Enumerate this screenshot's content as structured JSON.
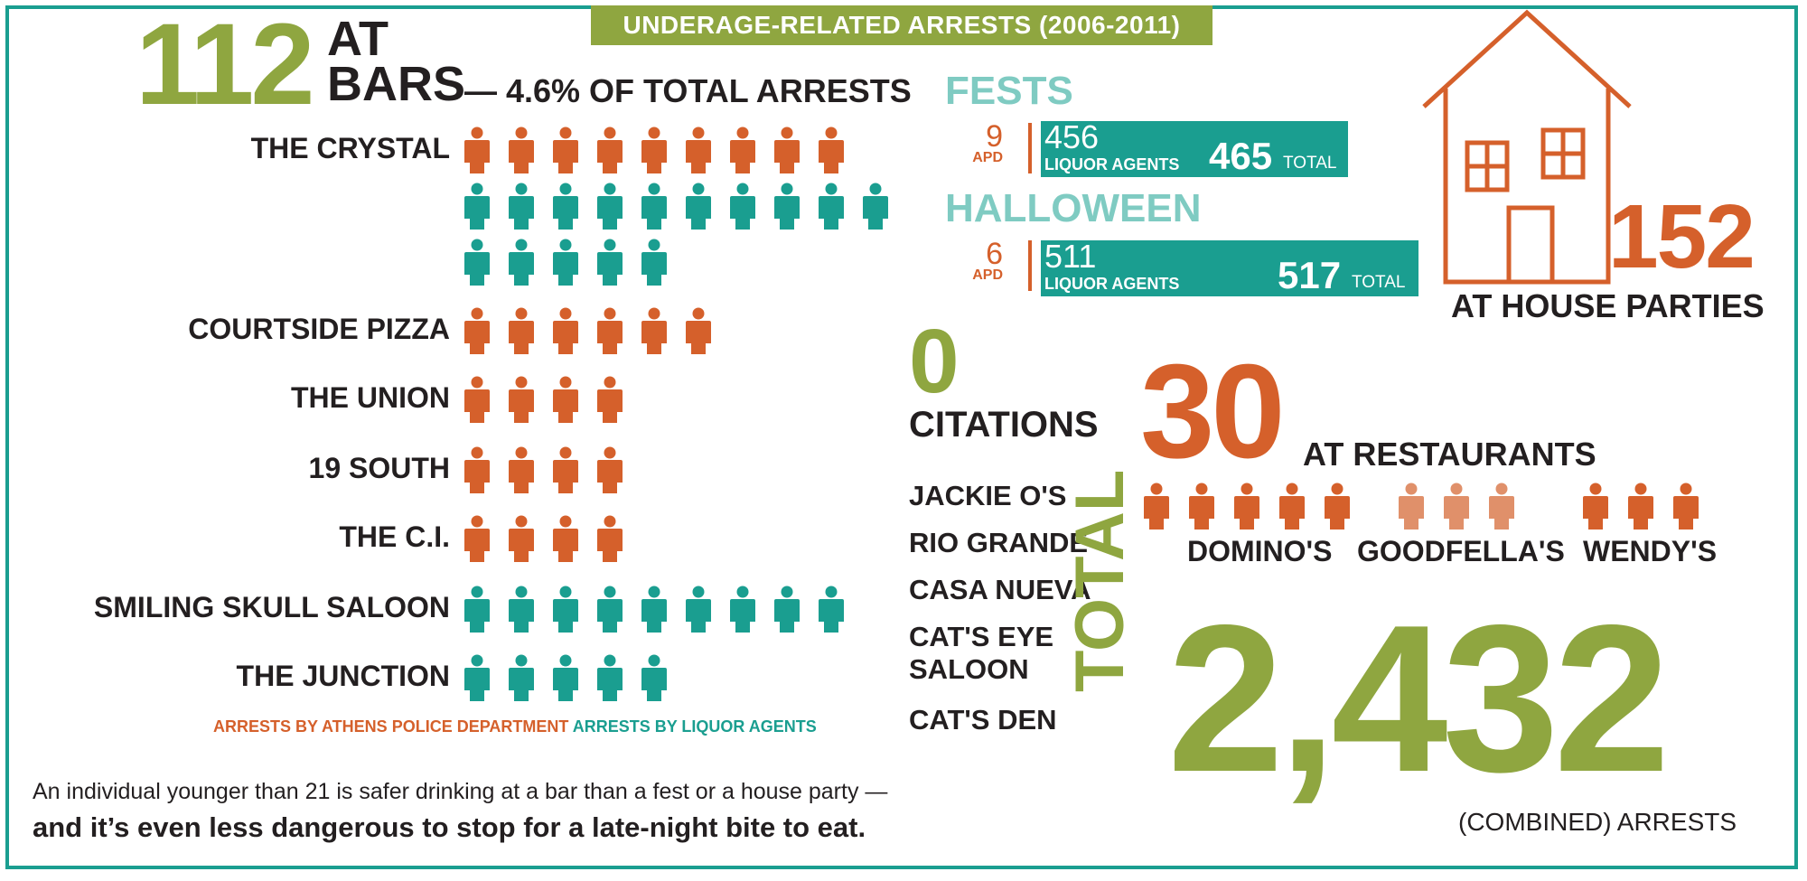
{
  "title": "UNDERAGE-RELATED ARRESTS (2006-2011)",
  "colors": {
    "apd": "#d5602b",
    "liquor": "#1a9e90",
    "green": "#8fa640",
    "light_teal": "#7fcbc2",
    "light_orange": "#e0906a"
  },
  "bars": {
    "number": "112",
    "label_line1": "AT",
    "label_line2": "BARS",
    "pct_text": "— 4.6% OF TOTAL ARRESTS",
    "legend_apd": "ARRESTS BY ATHENS POLICE DEPARTMENT",
    "legend_liquor": "ARRESTS BY LIQUOR AGENTS"
  },
  "chart_data": {
    "type": "bar",
    "title": "UNDERAGE-RELATED ARRESTS (2006-2011)",
    "categories": [
      "THE CRYSTAL",
      "COURTSIDE PIZZA",
      "THE UNION",
      "19 SOUTH",
      "THE C.I.",
      "SMILING SKULL SALOON",
      "THE JUNCTION"
    ],
    "series": [
      {
        "name": "ARRESTS BY ATHENS POLICE DEPARTMENT",
        "values": [
          9,
          6,
          4,
          4,
          4,
          0,
          0
        ]
      },
      {
        "name": "ARRESTS BY LIQUOR AGENTS",
        "values": [
          15,
          0,
          0,
          0,
          0,
          9,
          5
        ]
      }
    ],
    "fests": {
      "apd": 9,
      "liquor_agents": 456,
      "total": 465
    },
    "halloween": {
      "apd": 6,
      "liquor_agents": 511,
      "total": 517
    },
    "restaurants": {
      "categories": [
        "DOMINO'S",
        "GOODFELLA'S",
        "WENDY'S"
      ],
      "values": [
        5,
        3,
        3
      ]
    },
    "house_parties": 152,
    "restaurants_total": 30,
    "bars_total": 112,
    "total": 2432
  },
  "fests": {
    "heading": "FESTS",
    "apd_num": "9",
    "apd_label": "APD",
    "liquor_num": "456",
    "liquor_label": "LIQUOR AGENTS",
    "total_num": "465",
    "total_label": "TOTAL"
  },
  "halloween": {
    "heading": "HALLOWEEN",
    "apd_num": "6",
    "apd_label": "APD",
    "liquor_num": "511",
    "liquor_label": "LIQUOR AGENTS",
    "total_num": "517",
    "total_label": "TOTAL"
  },
  "citations": {
    "number": "0",
    "label": "CITATIONS",
    "places": [
      "JACKIE O'S",
      "RIO GRANDE",
      "CASA NUEVA",
      "CAT'S EYE",
      "SALOON",
      "CAT'S DEN"
    ]
  },
  "restaurants": {
    "number": "30",
    "label": "AT RESTAURANTS"
  },
  "house": {
    "number": "152",
    "label": "AT HOUSE PARTIES"
  },
  "total": {
    "word": "TOTAL",
    "number": "2,432",
    "label": "(COMBINED) ARRESTS"
  },
  "note": {
    "line1": "An individual younger than 21 is safer drinking at a bar than a fest or a house party —",
    "line2": "and it’s even less dangerous to stop for a late-night bite to eat."
  }
}
